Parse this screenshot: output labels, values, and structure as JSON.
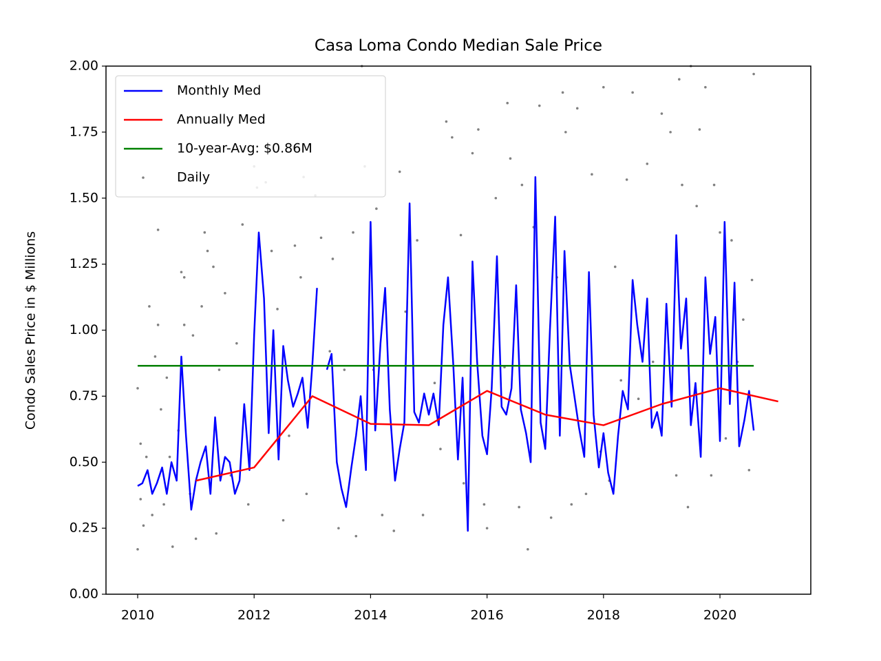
{
  "chart_data": {
    "type": "line",
    "title": "Casa Loma Condo Median Sale Price",
    "y_label": "Condo Sales Price in $ Millions",
    "xlim": [
      2009.456,
      2021.56
    ],
    "ylim": [
      0,
      2
    ],
    "xticks": [
      2010,
      2012,
      2014,
      2016,
      2018,
      2020
    ],
    "yticks": [
      {
        "value": 0,
        "label": "0.00"
      },
      0.25,
      {
        "value": 0.5,
        "label": "0.50"
      },
      0.75,
      {
        "value": 1,
        "label": "1.00"
      },
      1.25,
      {
        "value": 1.5,
        "label": "1.50"
      },
      1.75,
      {
        "value": 2,
        "label": "2.00"
      }
    ],
    "legend": "upper left",
    "series": [
      {
        "name": "Monthly Med",
        "color": "#0000ff",
        "type": "line",
        "x": [
          2010.0,
          2010.08,
          2010.17,
          2010.25,
          2010.33,
          2010.42,
          2010.5,
          2010.58,
          2010.67,
          2010.75,
          2010.83,
          2010.92,
          2011.0,
          2011.08,
          2011.17,
          2011.25,
          2011.33,
          2011.42,
          2011.5,
          2011.58,
          2011.67,
          2011.75,
          2011.83,
          2011.92,
          2012.0,
          2012.08,
          2012.17,
          2012.25,
          2012.33,
          2012.42,
          2012.5,
          2012.58,
          2012.67,
          2012.75,
          2012.83,
          2012.92,
          2013.0,
          2013.08,
          2013.17,
          2013.25,
          2013.33,
          2013.42,
          2013.5,
          2013.58,
          2013.67,
          2013.75,
          2013.83,
          2013.92,
          2014.0,
          2014.08,
          2014.17,
          2014.25,
          2014.33,
          2014.42,
          2014.5,
          2014.58,
          2014.67,
          2014.75,
          2014.83,
          2014.92,
          2015.0,
          2015.08,
          2015.17,
          2015.25,
          2015.33,
          2015.42,
          2015.5,
          2015.58,
          2015.67,
          2015.75,
          2015.83,
          2015.92,
          2016.0,
          2016.08,
          2016.17,
          2016.25,
          2016.33,
          2016.42,
          2016.5,
          2016.58,
          2016.67,
          2016.75,
          2016.83,
          2016.92,
          2017.0,
          2017.08,
          2017.17,
          2017.25,
          2017.33,
          2017.42,
          2017.5,
          2017.58,
          2017.67,
          2017.75,
          2017.83,
          2017.92,
          2018.0,
          2018.08,
          2018.17,
          2018.25,
          2018.33,
          2018.42,
          2018.5,
          2018.58,
          2018.67,
          2018.75,
          2018.83,
          2018.92,
          2019.0,
          2019.08,
          2019.17,
          2019.25,
          2019.33,
          2019.42,
          2019.5,
          2019.58,
          2019.67,
          2019.75,
          2019.83,
          2019.92,
          2020.0,
          2020.08,
          2020.17,
          2020.25,
          2020.33,
          2020.42,
          2020.5,
          2020.58
        ],
        "values": [
          0.41,
          0.42,
          0.47,
          0.38,
          0.42,
          0.48,
          0.38,
          0.5,
          0.43,
          0.9,
          0.6,
          0.32,
          0.43,
          0.5,
          0.56,
          0.38,
          0.67,
          0.43,
          0.52,
          0.5,
          0.38,
          0.43,
          0.72,
          0.47,
          0.98,
          1.37,
          1.12,
          0.61,
          1.0,
          0.51,
          0.94,
          0.81,
          0.71,
          0.76,
          0.82,
          0.63,
          0.87,
          1.16,
          null,
          0.85,
          0.91,
          0.5,
          0.4,
          0.33,
          0.48,
          0.6,
          0.75,
          0.47,
          1.41,
          0.62,
          0.95,
          1.16,
          0.7,
          0.43,
          0.55,
          0.65,
          1.48,
          0.69,
          0.65,
          0.76,
          0.68,
          0.76,
          0.64,
          1.02,
          1.2,
          0.87,
          0.51,
          0.82,
          0.24,
          1.26,
          0.88,
          0.6,
          0.53,
          0.78,
          1.28,
          0.71,
          0.68,
          0.78,
          1.17,
          0.7,
          0.61,
          0.5,
          1.58,
          0.65,
          0.55,
          1.0,
          1.43,
          0.6,
          1.3,
          0.87,
          0.75,
          0.63,
          0.52,
          1.22,
          0.68,
          0.48,
          0.61,
          0.46,
          0.38,
          0.6,
          0.77,
          0.7,
          1.19,
          1.02,
          0.88,
          1.12,
          0.63,
          0.69,
          0.6,
          1.1,
          0.71,
          1.36,
          0.93,
          1.12,
          0.64,
          0.8,
          0.52,
          1.2,
          0.91,
          1.05,
          0.58,
          1.41,
          0.72,
          1.18,
          0.56,
          0.66,
          0.77,
          0.62
        ]
      },
      {
        "name": "Annually Med",
        "color": "#ff0000",
        "type": "line",
        "x": [
          2011,
          2012,
          2013,
          2014,
          2015,
          2016,
          2017,
          2018,
          2019,
          2020,
          2021
        ],
        "values": [
          0.43,
          0.48,
          0.75,
          0.645,
          0.64,
          0.77,
          0.68,
          0.64,
          0.72,
          0.78,
          0.73
        ]
      },
      {
        "name": "10-year-Avg: $0.86M",
        "color": "#008000",
        "type": "line",
        "x": [
          2010,
          2020.58
        ],
        "values": [
          0.865,
          0.865
        ]
      },
      {
        "name": "Daily",
        "color": "#808080",
        "type": "scatter",
        "x": [
          2010.0,
          2010.0,
          2010.05,
          2010.05,
          2010.1,
          2010.15,
          2010.2,
          2010.25,
          2010.3,
          2010.35,
          2010.35,
          2010.4,
          2010.45,
          2010.5,
          2010.55,
          2010.6,
          2010.7,
          2010.75,
          2010.8,
          2010.8,
          2010.9,
          2010.95,
          2011.0,
          2011.1,
          2011.15,
          2011.2,
          2011.3,
          2011.35,
          2011.4,
          2011.5,
          2011.6,
          2011.7,
          2011.8,
          2011.9,
          2012.0,
          2012.05,
          2012.2,
          2012.3,
          2012.4,
          2012.5,
          2012.6,
          2012.7,
          2012.8,
          2012.85,
          2012.9,
          2013.05,
          2013.15,
          2013.3,
          2013.35,
          2013.45,
          2013.55,
          2013.7,
          2013.75,
          2013.85,
          2013.9,
          2014.05,
          2014.1,
          2014.2,
          2014.4,
          2014.5,
          2014.6,
          2014.8,
          2014.9,
          2015.1,
          2015.2,
          2015.3,
          2015.4,
          2015.55,
          2015.6,
          2015.75,
          2015.85,
          2015.95,
          2016.0,
          2016.15,
          2016.3,
          2016.35,
          2016.4,
          2016.55,
          2016.6,
          2016.7,
          2016.8,
          2016.9,
          2017.1,
          2017.2,
          2017.3,
          2017.35,
          2017.45,
          2017.55,
          2017.7,
          2017.8,
          2017.95,
          2018.0,
          2018.1,
          2018.2,
          2018.3,
          2018.4,
          2018.5,
          2018.6,
          2018.75,
          2018.85,
          2019.0,
          2019.15,
          2019.25,
          2019.3,
          2019.35,
          2019.45,
          2019.5,
          2019.6,
          2019.65,
          2019.75,
          2019.85,
          2019.9,
          2020.0,
          2020.1,
          2020.2,
          2020.3,
          2020.4,
          2020.5,
          2020.55,
          2020.58
        ],
        "values": [
          0.78,
          0.17,
          0.57,
          0.36,
          0.26,
          0.52,
          1.09,
          0.3,
          0.9,
          1.38,
          1.02,
          0.7,
          0.34,
          0.82,
          0.52,
          0.18,
          0.62,
          1.22,
          1.2,
          1.02,
          0.38,
          0.98,
          0.21,
          1.09,
          1.37,
          1.3,
          1.24,
          0.23,
          0.85,
          1.14,
          0.45,
          0.95,
          1.4,
          0.34,
          1.62,
          1.54,
          1.56,
          1.3,
          1.08,
          0.28,
          0.6,
          1.32,
          1.2,
          1.58,
          0.38,
          1.51,
          1.35,
          0.92,
          1.27,
          0.25,
          0.85,
          1.37,
          0.22,
          2.0,
          1.62,
          0.85,
          1.46,
          0.3,
          0.24,
          1.6,
          1.07,
          1.34,
          0.3,
          0.8,
          0.55,
          1.79,
          1.73,
          1.36,
          0.42,
          1.67,
          1.76,
          0.34,
          0.25,
          1.5,
          0.86,
          1.86,
          1.65,
          0.33,
          1.55,
          0.17,
          1.39,
          1.85,
          0.29,
          1.2,
          1.9,
          1.75,
          0.34,
          1.84,
          0.38,
          1.59,
          0.54,
          1.92,
          0.43,
          1.24,
          0.81,
          1.57,
          1.9,
          0.74,
          1.63,
          0.88,
          1.82,
          1.75,
          0.45,
          1.95,
          1.55,
          0.33,
          2.0,
          1.47,
          1.76,
          1.92,
          0.45,
          1.55,
          1.37,
          0.59,
          1.34,
          0.88,
          1.04,
          0.47,
          1.19,
          1.97
        ]
      }
    ]
  }
}
